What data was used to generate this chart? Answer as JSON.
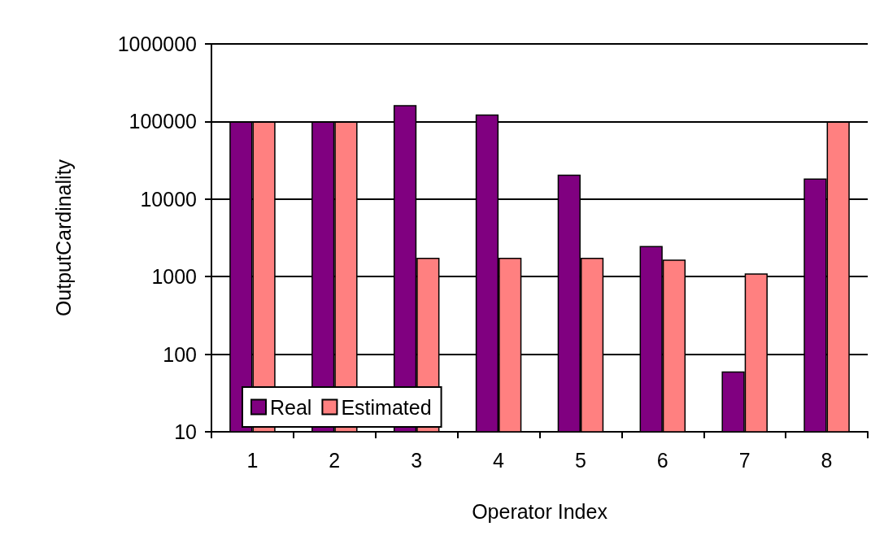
{
  "chart_data": {
    "type": "bar",
    "xlabel": "Operator Index",
    "ylabel": "OutputCardinality",
    "categories": [
      "1",
      "2",
      "3",
      "4",
      "5",
      "6",
      "7",
      "8"
    ],
    "series": [
      {
        "name": "Real",
        "color": "#800080",
        "values": [
          100000,
          100000,
          163000,
          123000,
          20600,
          2480,
          60,
          18400
        ]
      },
      {
        "name": "Estimated",
        "color": "#ff8080",
        "values": [
          100000,
          100000,
          1750,
          1750,
          1750,
          1660,
          1100,
          100000
        ]
      }
    ],
    "log": "y",
    "ylim": [
      10,
      1000000
    ],
    "yticks": [
      10,
      100,
      1000,
      10000,
      100000,
      1000000
    ],
    "grid": "y",
    "legend": "bottom left"
  }
}
